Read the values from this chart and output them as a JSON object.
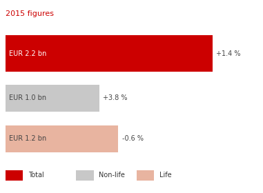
{
  "title": "2015 figures",
  "title_color": "#cc0000",
  "title_fontsize": 8,
  "bars": [
    {
      "label": "EUR 2.2 bn",
      "value": 2.2,
      "color": "#cc0000",
      "pct": "+1.4 %",
      "category": "Total"
    },
    {
      "label": "EUR 1.0 bn",
      "value": 1.0,
      "color": "#c8c8c8",
      "pct": "+3.8 %",
      "category": "Non-life"
    },
    {
      "label": "EUR 1.2 bn",
      "value": 1.2,
      "color": "#e8b4a0",
      "pct": "-0.6 %",
      "category": "Life"
    }
  ],
  "max_value": 2.2,
  "background_color": "#ffffff",
  "label_fontsize": 7,
  "pct_fontsize": 7,
  "legend_fontsize": 7,
  "bar_label_color_total": "#ffffff",
  "bar_label_color_other": "#444444",
  "pct_color": "#444444",
  "legend_items": [
    {
      "color": "#cc0000",
      "label": "Total"
    },
    {
      "color": "#c8c8c8",
      "label": "Non-life"
    },
    {
      "color": "#e8b4a0",
      "label": "Life"
    }
  ]
}
